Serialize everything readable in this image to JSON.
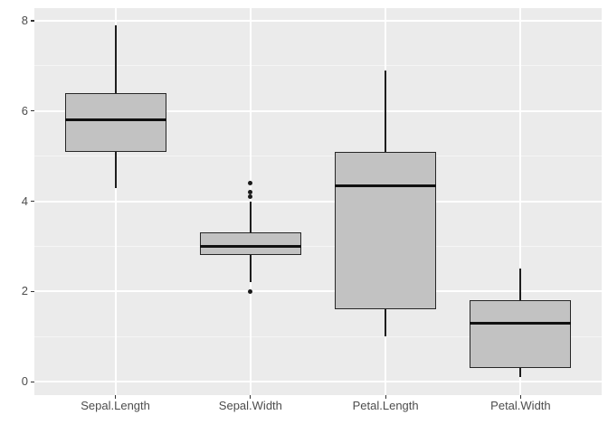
{
  "chart_data": {
    "type": "boxplot",
    "title": "",
    "xlabel": "",
    "ylabel": "",
    "categories": [
      "Sepal.Length",
      "Sepal.Width",
      "Petal.Length",
      "Petal.Width"
    ],
    "series": [
      {
        "name": "Sepal.Length",
        "whisker_low": 4.3,
        "q1": 5.1,
        "median": 5.8,
        "q3": 6.4,
        "whisker_high": 7.9,
        "outliers": []
      },
      {
        "name": "Sepal.Width",
        "whisker_low": 2.2,
        "q1": 2.8,
        "median": 3.0,
        "q3": 3.3,
        "whisker_high": 4.0,
        "outliers": [
          2.0,
          4.1,
          4.2,
          4.4
        ]
      },
      {
        "name": "Petal.Length",
        "whisker_low": 1.0,
        "q1": 1.6,
        "median": 4.35,
        "q3": 5.1,
        "whisker_high": 6.9,
        "outliers": []
      },
      {
        "name": "Petal.Width",
        "whisker_low": 0.1,
        "q1": 0.3,
        "median": 1.3,
        "q3": 1.8,
        "whisker_high": 2.5,
        "outliers": []
      }
    ],
    "y_ticks": [
      {
        "value": 0,
        "label": "0"
      },
      {
        "value": 2,
        "label": "2"
      },
      {
        "value": 4,
        "label": "4"
      },
      {
        "value": 6,
        "label": "6"
      },
      {
        "value": 8,
        "label": "8"
      }
    ],
    "y_minor_ticks": [
      1,
      3,
      5,
      7
    ],
    "ylim": [
      -0.29,
      8.29
    ],
    "grid": true,
    "legend": "none",
    "colors": {
      "plot_background": "#ffffff",
      "panel_background": "#ebebeb",
      "grid_major": "#ffffff",
      "grid_minor": "#f5f5f5",
      "box_fill": "#c2c2c2",
      "box_border": "#262626",
      "median": "#101010",
      "whisker": "#1d1d1d",
      "outlier": "#1a1a1a",
      "axis_text": "#4d4d4d",
      "tick_mark": "#333333"
    }
  }
}
